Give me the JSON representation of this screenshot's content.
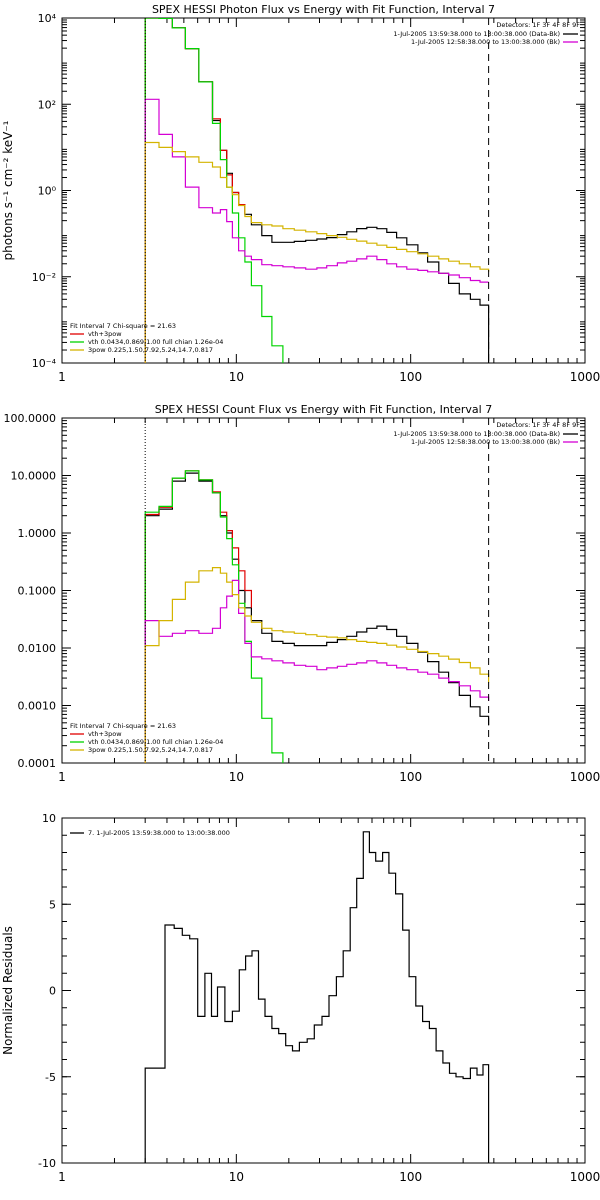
{
  "chart_data": [
    {
      "type": "line",
      "title": "SPEX HESSI Photon Flux vs Energy with Fit Function, Interval 7",
      "ylabel": "photons s⁻¹ cm⁻² keV⁻¹",
      "x_scale": "log",
      "y_scale": "log",
      "xlim": [
        1,
        1000
      ],
      "ylim": [
        0.0001,
        10000
      ],
      "x_ticks": [
        1,
        10,
        100,
        1000
      ],
      "x_tick_labels": [
        "1",
        "10",
        "100",
        "1000"
      ],
      "y_ticks": [
        0.0001,
        0.01,
        1,
        100,
        10000
      ],
      "y_tick_labels": [
        "10⁻⁴",
        "10⁻²",
        "10⁰",
        "10²",
        "10⁴"
      ],
      "vlines": [
        {
          "x": 3,
          "style": "dotted",
          "color": "#000000"
        },
        {
          "x": 280,
          "style": "dashed",
          "color": "#000000"
        }
      ],
      "top_legend": {
        "header": "Detectors: 1F 3F 4F 8F 9F",
        "entries": [
          {
            "text": "1-Jul-2005 13:59:38.000 to 13:00:38.000 (Data-Bk)",
            "color": "#000000"
          },
          {
            "text": "1-Jul-2005 12:58:38.000 to 13:00:38.000 (Bk)",
            "color": "#d400d4"
          }
        ]
      },
      "fit_legend": {
        "header": "Fit Interval 7   Chi-square = 21.63",
        "entries": [
          {
            "text": "vth+3pow",
            "color": "#e00000"
          },
          {
            "text": "vth 0.0434,0.869,1.00  full chian 1.26e-04",
            "color": "#00d400"
          },
          {
            "text": "3pow 0.225,1.50,7.92,5.24,14.7,0.817",
            "color": "#d4b400"
          }
        ]
      },
      "series": [
        {
          "color": "#000000",
          "edges": [
            3,
            3.6,
            4.3,
            5.1,
            6.1,
            7.3,
            8.1,
            8.8,
            9.5,
            10.3,
            11.2,
            12.2,
            14,
            16,
            18.5,
            21.5,
            25,
            29,
            33,
            38,
            43,
            49,
            56,
            64,
            73,
            83,
            95,
            110,
            125,
            145,
            165,
            190,
            220,
            250,
            280
          ],
          "values": [
            10000,
            9800,
            5900,
            1950,
            330,
            42,
            8.5,
            2.5,
            0.9,
            0.47,
            0.28,
            0.16,
            0.09,
            0.063,
            0.063,
            0.066,
            0.07,
            0.075,
            0.081,
            0.095,
            0.11,
            0.131,
            0.14,
            0.13,
            0.107,
            0.08,
            0.055,
            0.036,
            0.022,
            0.012,
            0.007,
            0.004,
            0.003,
            0.0022
          ]
        },
        {
          "color": "#e00000",
          "edges": [
            3,
            3.6,
            4.3,
            5.1,
            6.1,
            7.3,
            8.1,
            8.8,
            9.5,
            10.3,
            11.2
          ],
          "values": [
            10000,
            9800,
            5900,
            1950,
            330,
            46,
            8.5,
            2.3,
            0.9,
            0.47,
            0.28
          ]
        },
        {
          "color": "#00d400",
          "edges": [
            3,
            3.6,
            4.3,
            5.1,
            6.1,
            7.3,
            8.1,
            8.8,
            9.5,
            10.3,
            11.2,
            12.2,
            14,
            16,
            18.5
          ],
          "values": [
            10000,
            9800,
            5900,
            1950,
            330,
            36,
            5.2,
            1.2,
            0.3,
            0.08,
            0.022,
            0.0062,
            0.0012,
            0.00025,
            6e-05
          ]
        },
        {
          "color": "#d400d4",
          "edges": [
            3,
            3.6,
            4.3,
            5.1,
            6.1,
            7.3,
            8.1,
            8.8,
            9.5,
            10.3,
            11.2,
            12.2,
            14,
            16,
            18.5,
            21.5,
            25,
            29,
            33,
            38,
            43,
            49,
            56,
            64,
            73,
            83,
            95,
            110,
            125,
            145,
            165,
            190,
            220,
            250,
            280
          ],
          "values": [
            130,
            20,
            6,
            1.2,
            0.4,
            0.3,
            0.36,
            0.19,
            0.08,
            0.04,
            0.03,
            0.025,
            0.019,
            0.018,
            0.017,
            0.016,
            0.015,
            0.016,
            0.018,
            0.021,
            0.023,
            0.026,
            0.03,
            0.025,
            0.02,
            0.017,
            0.015,
            0.014,
            0.013,
            0.012,
            0.011,
            0.0095,
            0.0082,
            0.0075,
            0.0075
          ]
        },
        {
          "color": "#d4b400",
          "edges": [
            3,
            3.6,
            4.3,
            5.1,
            6.1,
            7.3,
            8.1,
            8.8,
            9.5,
            10.3,
            11.2,
            12.2,
            14,
            16,
            18.5,
            21.5,
            25,
            29,
            33,
            38,
            43,
            49,
            56,
            64,
            73,
            83,
            95,
            110,
            125,
            145,
            165,
            190,
            220,
            250,
            280
          ],
          "values": [
            13,
            10,
            8,
            6,
            4.5,
            3.5,
            2,
            1.2,
            0.8,
            0.45,
            0.25,
            0.18,
            0.16,
            0.15,
            0.13,
            0.12,
            0.11,
            0.1,
            0.09,
            0.082,
            0.074,
            0.067,
            0.06,
            0.054,
            0.048,
            0.043,
            0.038,
            0.034,
            0.03,
            0.026,
            0.023,
            0.02,
            0.017,
            0.015,
            0.013
          ]
        }
      ]
    },
    {
      "type": "line",
      "title": "SPEX HESSI Count Flux vs Energy with Fit Function, Interval 7",
      "ylabel": "",
      "x_scale": "log",
      "y_scale": "log",
      "xlim": [
        1,
        1000
      ],
      "ylim": [
        0.0001,
        100
      ],
      "x_ticks": [
        1,
        10,
        100,
        1000
      ],
      "x_tick_labels": [
        "1",
        "10",
        "100",
        "1000"
      ],
      "y_ticks": [
        0.0001,
        0.001,
        0.01,
        0.1,
        1,
        10,
        100
      ],
      "y_tick_labels": [
        "0.0001",
        "0.0010",
        "0.0100",
        "0.1000",
        "1.0000",
        "10.0000",
        "100.0000"
      ],
      "vlines": [
        {
          "x": 3,
          "style": "dotted",
          "color": "#000000"
        },
        {
          "x": 280,
          "style": "dashed",
          "color": "#000000"
        }
      ],
      "top_legend": {
        "header": "Detectors: 1F 3F 4F 8F 9F",
        "entries": [
          {
            "text": "1-Jul-2005 13:59:38.000 to 13:00:38.000 (Data-Bk)",
            "color": "#000000"
          },
          {
            "text": "1-Jul-2005 12:58:38.000 to 13:00:38.000 (Bk)",
            "color": "#d400d4"
          }
        ]
      },
      "fit_legend": {
        "header": "Fit Interval 7   Chi-square = 21.63",
        "entries": [
          {
            "text": "vth+3pow",
            "color": "#e00000"
          },
          {
            "text": "vth 0.0434,0.869,1.00  full chian 1.26e-04",
            "color": "#00d400"
          },
          {
            "text": "3pow 0.225,1.50,7.92,5.24,14.7,0.817",
            "color": "#d4b400"
          }
        ]
      },
      "series": [
        {
          "color": "#000000",
          "edges": [
            3,
            3.6,
            4.3,
            5.1,
            6.1,
            7.3,
            8.1,
            8.8,
            9.5,
            10.3,
            11.2,
            12.2,
            14,
            16,
            18.5,
            21.5,
            25,
            29,
            33,
            38,
            43,
            49,
            56,
            64,
            73,
            83,
            95,
            110,
            125,
            145,
            165,
            190,
            220,
            250,
            280
          ],
          "values": [
            2,
            2.6,
            8,
            11,
            8,
            5,
            2,
            1,
            0.35,
            0.1,
            0.05,
            0.03,
            0.018,
            0.013,
            0.012,
            0.011,
            0.011,
            0.011,
            0.0125,
            0.014,
            0.016,
            0.019,
            0.022,
            0.024,
            0.021,
            0.016,
            0.012,
            0.0085,
            0.0058,
            0.0038,
            0.0025,
            0.0015,
            0.00095,
            0.00065,
            0.00045
          ]
        },
        {
          "color": "#e00000",
          "edges": [
            3,
            3.6,
            4.3,
            5.1,
            6.1,
            7.3,
            8.1,
            8.8,
            9.5,
            10.3,
            11.2,
            12.2
          ],
          "values": [
            2.1,
            2.8,
            9,
            12,
            8.4,
            5.2,
            2.3,
            1.1,
            0.55,
            0.22,
            0.1,
            0.05
          ]
        },
        {
          "color": "#00d400",
          "edges": [
            3,
            3.6,
            4.3,
            5.1,
            6.1,
            7.3,
            8.1,
            8.8,
            9.5,
            10.3,
            11.2,
            12.2,
            14,
            16,
            18.5
          ],
          "values": [
            2.3,
            2.9,
            9,
            12,
            8.4,
            5,
            1.9,
            0.8,
            0.28,
            0.06,
            0.013,
            0.003,
            0.0006,
            0.00015,
            5e-05
          ]
        },
        {
          "color": "#d400d4",
          "edges": [
            3,
            3.6,
            4.3,
            5.1,
            6.1,
            7.3,
            8.1,
            8.8,
            9.5,
            10.3,
            11.2,
            12.2,
            14,
            16,
            18.5,
            21.5,
            25,
            29,
            33,
            38,
            43,
            49,
            56,
            64,
            73,
            83,
            95,
            110,
            125,
            145,
            165,
            190,
            220,
            250,
            280
          ],
          "values": [
            0.03,
            0.016,
            0.018,
            0.02,
            0.018,
            0.022,
            0.05,
            0.08,
            0.15,
            0.04,
            0.012,
            0.007,
            0.0065,
            0.006,
            0.0055,
            0.005,
            0.0048,
            0.0042,
            0.0045,
            0.0048,
            0.0052,
            0.0055,
            0.006,
            0.0055,
            0.005,
            0.0045,
            0.0042,
            0.0038,
            0.0035,
            0.003,
            0.0026,
            0.0022,
            0.0018,
            0.0014,
            0.0012
          ]
        },
        {
          "color": "#d4b400",
          "edges": [
            3,
            3.6,
            4.3,
            5.1,
            6.1,
            7.3,
            8.1,
            8.8,
            9.5,
            10.3,
            11.2,
            12.2,
            14,
            16,
            18.5,
            21.5,
            25,
            29,
            33,
            38,
            43,
            49,
            56,
            64,
            73,
            83,
            95,
            110,
            125,
            145,
            165,
            190,
            220,
            250,
            280
          ],
          "values": [
            0.011,
            0.03,
            0.07,
            0.14,
            0.22,
            0.25,
            0.2,
            0.14,
            0.085,
            0.05,
            0.036,
            0.028,
            0.022,
            0.02,
            0.019,
            0.018,
            0.017,
            0.016,
            0.0155,
            0.015,
            0.014,
            0.013,
            0.0125,
            0.012,
            0.0112,
            0.0104,
            0.0095,
            0.0087,
            0.008,
            0.0072,
            0.0064,
            0.0056,
            0.0045,
            0.0035,
            0.0025
          ]
        }
      ]
    },
    {
      "type": "line",
      "title": "",
      "ylabel": "Normalized Residuals",
      "x_scale": "log",
      "y_scale": "linear",
      "xlim": [
        1,
        1000
      ],
      "ylim": [
        -10,
        10
      ],
      "x_ticks": [
        1,
        10,
        100,
        1000
      ],
      "x_tick_labels": [
        "1",
        "10",
        "100",
        "1000"
      ],
      "y_ticks": [
        -10,
        -5,
        0,
        5,
        10
      ],
      "y_tick_labels": [
        "-10",
        "-5",
        "0",
        "5",
        "10"
      ],
      "vlines": [],
      "top_legend": null,
      "fit_legend": null,
      "resid_legend": {
        "text": "7.  1-Jul-2005 13:59:38.000 to 13:00:38.000",
        "color": "#000000"
      },
      "series": [
        {
          "color": "#000000",
          "edges": [
            3,
            3.9,
            4.4,
            4.9,
            5.4,
            6.0,
            6.6,
            7.2,
            7.8,
            8.6,
            9.5,
            10.4,
            11.3,
            12.3,
            13.4,
            14.6,
            16,
            17.5,
            19.2,
            21,
            23,
            25.5,
            28,
            31,
            34,
            37.5,
            41,
            45,
            49,
            53.5,
            58,
            63,
            69,
            75,
            82,
            90,
            98,
            107,
            117,
            128,
            140,
            153,
            167,
            182,
            200,
            220,
            240,
            260,
            280
          ],
          "values": [
            -4.5,
            3.8,
            3.6,
            3.2,
            3.0,
            -1.5,
            1.0,
            -1.5,
            0.2,
            -1.8,
            -1.2,
            1.2,
            2.0,
            2.3,
            -0.5,
            -1.5,
            -2.2,
            -2.5,
            -3.2,
            -3.5,
            -3.0,
            -2.8,
            -2.0,
            -1.5,
            -0.3,
            0.8,
            2.3,
            4.8,
            6.5,
            9.2,
            8.0,
            7.5,
            8.0,
            6.8,
            5.6,
            3.5,
            0.8,
            -0.9,
            -1.8,
            -2.2,
            -3.5,
            -4.2,
            -4.8,
            -5.0,
            -5.1,
            -4.5,
            -4.9,
            -4.3
          ]
        }
      ]
    }
  ]
}
